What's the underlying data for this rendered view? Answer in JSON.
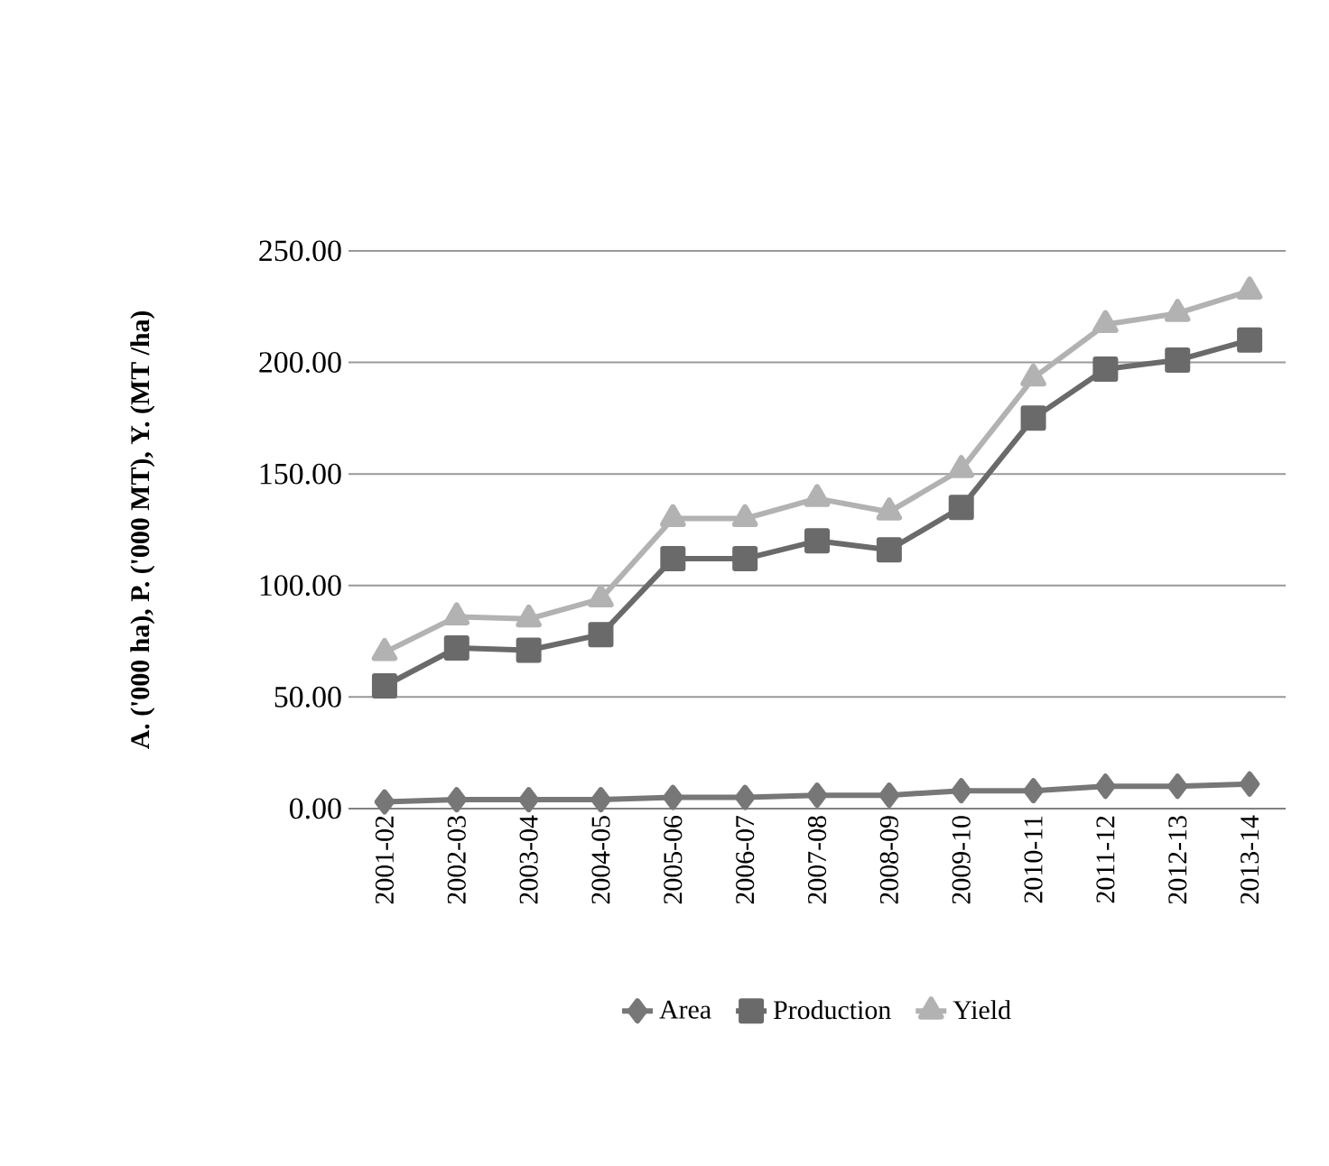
{
  "chart_data": {
    "type": "line",
    "ylabel": "A. ('000 ha), P. ('000 MT), Y. (MT /ha)",
    "categories": [
      "2001-02",
      "2002-03",
      "2003-04",
      "2004-05",
      "2005-06",
      "2006-07",
      "2007-08",
      "2008-09",
      "2009-10",
      "2010-11",
      "2011-12",
      "2012-13",
      "2013-14"
    ],
    "series": [
      {
        "name": "Area",
        "color": "#777777",
        "marker": "diamond",
        "values": [
          3,
          4,
          4,
          4,
          5,
          5,
          6,
          6,
          8,
          8,
          10,
          10,
          11
        ]
      },
      {
        "name": "Production",
        "color": "#6a6a6a",
        "marker": "square",
        "values": [
          55,
          72,
          71,
          78,
          112,
          112,
          120,
          116,
          135,
          175,
          197,
          201,
          210
        ]
      },
      {
        "name": "Yield",
        "color": "#b2b2b2",
        "marker": "triangle",
        "values": [
          70,
          86,
          85,
          94,
          130,
          130,
          139,
          133,
          152,
          193,
          217,
          222,
          232
        ]
      }
    ],
    "ylim": [
      0,
      250
    ],
    "yticks": [
      {
        "value": 0,
        "label": "0.00"
      },
      {
        "value": 50,
        "label": "50.00"
      },
      {
        "value": 100,
        "label": "100.00"
      },
      {
        "value": 150,
        "label": "150.00"
      },
      {
        "value": 200,
        "label": "200.00"
      },
      {
        "value": 250,
        "label": "250.00"
      }
    ],
    "grid": "y",
    "legend": "bottom"
  }
}
